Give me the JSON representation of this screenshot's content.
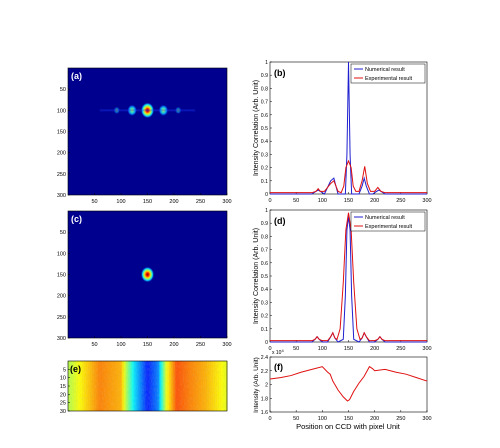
{
  "chart_data": [
    {
      "panel": "(a)",
      "type": "heatmap",
      "colormap": "jet",
      "xlim": [
        0,
        300
      ],
      "ylim": [
        0,
        300
      ],
      "xticks": [
        "50",
        "100",
        "150",
        "200",
        "250",
        "300"
      ],
      "yticks": [
        "50",
        "100",
        "150",
        "200",
        "250",
        "300"
      ],
      "spots": [
        {
          "x": 150,
          "y": 100,
          "intensity": 1.0
        },
        {
          "x": 121,
          "y": 100,
          "intensity": 0.55
        },
        {
          "x": 180,
          "y": 100,
          "intensity": 0.55
        },
        {
          "x": 92,
          "y": 100,
          "intensity": 0.15
        },
        {
          "x": 208,
          "y": 100,
          "intensity": 0.15
        }
      ]
    },
    {
      "panel": "(b)",
      "type": "line",
      "xlim": [
        0,
        300
      ],
      "ylim": [
        0,
        1
      ],
      "xticks": [
        "0",
        "50",
        "100",
        "150",
        "200",
        "250",
        "300"
      ],
      "yticks": [
        "0",
        "0.1",
        "0.2",
        "0.3",
        "0.4",
        "0.5",
        "0.6",
        "0.7",
        "0.8",
        "0.9",
        "1"
      ],
      "ylabel": "Intensity Correlation (Arb. Unit)",
      "legend_position": "top-right",
      "series": [
        {
          "name": "Numerical result",
          "color": "#1f1fd0",
          "x": [
            0,
            80,
            88,
            92,
            96,
            104,
            110,
            116,
            122,
            126,
            130,
            138,
            144,
            147,
            150,
            153,
            156,
            162,
            170,
            176,
            180,
            184,
            190,
            196,
            204,
            208,
            212,
            220,
            300
          ],
          "y": [
            0,
            0,
            0.02,
            0.03,
            0.02,
            0,
            0.05,
            0.1,
            0.12,
            0.06,
            0,
            0,
            0,
            0.3,
            1.0,
            0.3,
            0,
            0,
            0,
            0.06,
            0.12,
            0.06,
            0,
            0,
            0.02,
            0.03,
            0.02,
            0,
            0
          ]
        },
        {
          "name": "Experimental result",
          "color": "#e01010",
          "x": [
            0,
            80,
            88,
            92,
            96,
            104,
            110,
            116,
            122,
            126,
            130,
            136,
            141,
            145,
            150,
            155,
            159,
            164,
            170,
            176,
            181,
            186,
            192,
            200,
            206,
            212,
            220,
            300
          ],
          "y": [
            0.01,
            0.01,
            0.02,
            0.04,
            0.02,
            0.02,
            0.05,
            0.08,
            0.1,
            0.06,
            0.02,
            0.01,
            0.06,
            0.2,
            0.25,
            0.2,
            0.06,
            0.02,
            0.02,
            0.1,
            0.21,
            0.08,
            0.02,
            0.02,
            0.05,
            0.02,
            0.01,
            0.01
          ]
        }
      ]
    },
    {
      "panel": "(c)",
      "type": "heatmap",
      "colormap": "jet",
      "xlim": [
        0,
        300
      ],
      "ylim": [
        0,
        300
      ],
      "xticks": [
        "50",
        "100",
        "150",
        "200",
        "250",
        "300"
      ],
      "yticks": [
        "50",
        "100",
        "150",
        "200",
        "250",
        "300"
      ],
      "spots": [
        {
          "x": 150,
          "y": 150,
          "intensity": 1.0
        }
      ]
    },
    {
      "panel": "(d)",
      "type": "line",
      "xlim": [
        0,
        300
      ],
      "ylim": [
        0,
        1
      ],
      "xticks": [
        "0",
        "50",
        "100",
        "150",
        "200",
        "250",
        "300"
      ],
      "yticks": [
        "0",
        "0.1",
        "0.2",
        "0.3",
        "0.4",
        "0.5",
        "0.6",
        "0.7",
        "0.8",
        "0.9",
        "1"
      ],
      "ylabel": "Intensity Correlation (Arb. Unit)",
      "legend_position": "top-right",
      "series": [
        {
          "name": "Numerical result",
          "color": "#1f1fd0",
          "x": [
            0,
            80,
            86,
            90,
            94,
            100,
            110,
            116,
            120,
            124,
            130,
            140,
            144,
            147,
            150,
            153,
            156,
            160,
            170,
            176,
            180,
            184,
            190,
            200,
            206,
            210,
            214,
            220,
            300
          ],
          "y": [
            0,
            0,
            0.02,
            0.04,
            0.02,
            0,
            0,
            0.04,
            0.07,
            0.03,
            0,
            0.02,
            0.35,
            0.85,
            0.95,
            0.85,
            0.35,
            0.02,
            0,
            0.03,
            0.07,
            0.04,
            0,
            0,
            0.02,
            0.04,
            0.02,
            0,
            0
          ]
        },
        {
          "name": "Experimental result",
          "color": "#e01010",
          "x": [
            0,
            80,
            86,
            90,
            94,
            100,
            110,
            116,
            120,
            124,
            128,
            134,
            140,
            145,
            150,
            155,
            160,
            166,
            172,
            176,
            180,
            184,
            190,
            200,
            206,
            210,
            214,
            220,
            300
          ],
          "y": [
            0.01,
            0.01,
            0.02,
            0.04,
            0.02,
            0.01,
            0.01,
            0.04,
            0.07,
            0.03,
            0.02,
            0.1,
            0.45,
            0.85,
            0.98,
            0.85,
            0.45,
            0.1,
            0.02,
            0.03,
            0.07,
            0.04,
            0.01,
            0.01,
            0.02,
            0.04,
            0.02,
            0.01,
            0.01
          ]
        }
      ]
    },
    {
      "panel": "(e)",
      "type": "heatmap",
      "colormap": "jet",
      "xlim": [
        0,
        300
      ],
      "ylim": [
        0,
        30
      ],
      "yticks": [
        "5",
        "10",
        "15",
        "20",
        "25",
        "30"
      ],
      "column_profile_x": [
        0,
        60,
        100,
        110,
        125,
        150,
        170,
        185,
        205,
        230,
        260,
        300
      ],
      "column_profile_intensity": [
        0.55,
        0.75,
        0.7,
        0.55,
        0.35,
        0.15,
        0.25,
        0.6,
        0.8,
        0.75,
        0.7,
        0.6
      ]
    },
    {
      "panel": "(f)",
      "type": "line",
      "xlim": [
        0,
        300
      ],
      "ylim": [
        1.6,
        2.4
      ],
      "xticks": [
        "0",
        "50",
        "100",
        "150",
        "200",
        "250",
        "300"
      ],
      "yticks": [
        "1.6",
        "1.8",
        "2",
        "2.2",
        "2.4"
      ],
      "y_exponent": "x 10^4",
      "ylabel": "Intensity (Arb. Unit)",
      "xlabel": "Position on CCD with pixel Unit",
      "series": [
        {
          "color": "#e01010",
          "x": [
            0,
            20,
            40,
            60,
            80,
            100,
            110,
            115,
            120,
            130,
            140,
            148,
            152,
            160,
            170,
            180,
            190,
            196,
            200,
            220,
            240,
            260,
            280,
            300
          ],
          "y": [
            2.08,
            2.1,
            2.13,
            2.18,
            2.22,
            2.26,
            2.18,
            2.15,
            2.05,
            1.92,
            1.82,
            1.76,
            1.78,
            1.9,
            2.02,
            2.12,
            2.26,
            2.23,
            2.2,
            2.22,
            2.18,
            2.15,
            2.1,
            2.05
          ]
        }
      ]
    }
  ]
}
